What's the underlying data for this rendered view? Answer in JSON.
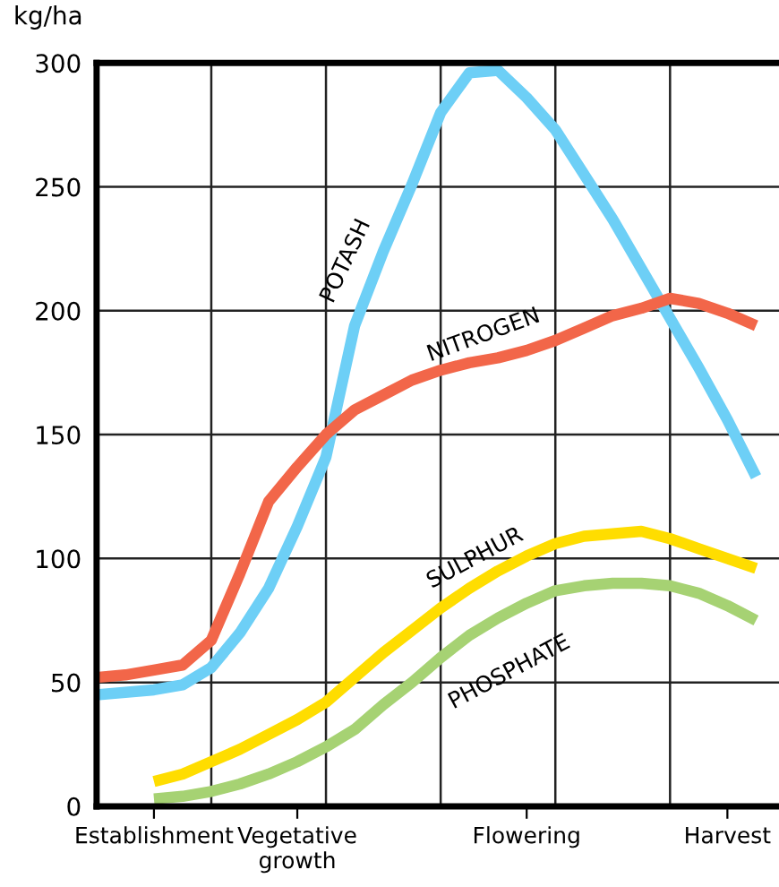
{
  "chart_data": {
    "type": "line",
    "ylabel": "kg/ha",
    "categories": [
      null,
      null,
      "Establishment",
      null,
      null,
      null,
      null,
      "Vegetative\ngrowth",
      null,
      null,
      null,
      null,
      null,
      null,
      null,
      "Flowering",
      null,
      null,
      null,
      null,
      null,
      null,
      "Harvest",
      null
    ],
    "ylim": [
      0,
      300
    ],
    "yticks": [
      0,
      50,
      100,
      150,
      200,
      250,
      300
    ],
    "grid": true,
    "legend": false,
    "line_style": "solid",
    "marker": "none",
    "series": [
      {
        "name": "POTASH",
        "color": "#6dcff6",
        "values": [
          45,
          46,
          47,
          49,
          56,
          70,
          88,
          113,
          141,
          194,
          224,
          251,
          280,
          296,
          297,
          286,
          273,
          255,
          237,
          217,
          197,
          177,
          156,
          133
        ]
      },
      {
        "name": "NITROGEN",
        "color": "#f26649",
        "values": [
          52,
          53,
          55,
          57,
          67,
          94,
          123,
          137,
          150,
          160,
          166,
          172,
          176,
          179,
          181,
          184,
          188,
          193,
          198,
          201,
          205,
          203,
          199,
          194
        ]
      },
      {
        "name": "SULPHUR",
        "color": "#ffdd00",
        "values": [
          null,
          null,
          10,
          13,
          18,
          23,
          29,
          35,
          42,
          52,
          62,
          71,
          80,
          88,
          95,
          101,
          106,
          109,
          110,
          111,
          108,
          104,
          100,
          96
        ]
      },
      {
        "name": "PHOSPHATE",
        "color": "#a6d273",
        "values": [
          null,
          null,
          3,
          4,
          6,
          9,
          13,
          18,
          24,
          31,
          41,
          50,
          60,
          69,
          76,
          82,
          87,
          89,
          90,
          90,
          89,
          86,
          81,
          75
        ]
      }
    ]
  }
}
